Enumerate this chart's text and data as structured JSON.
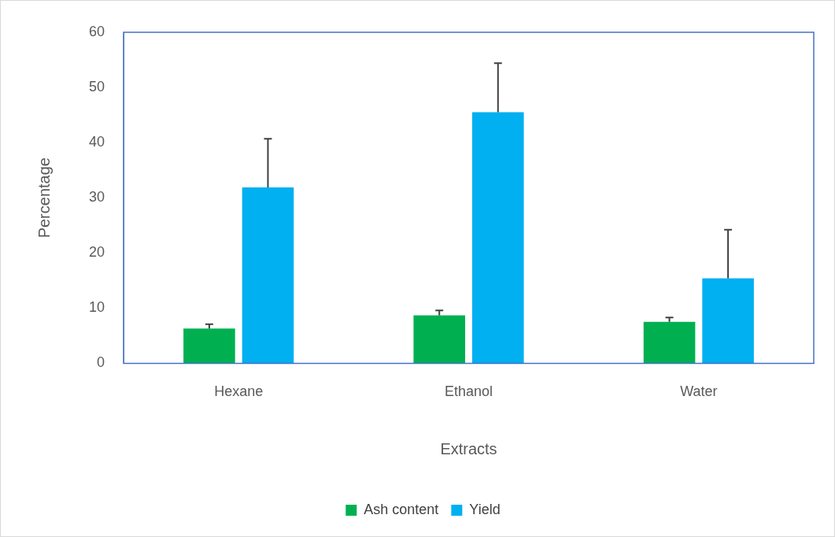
{
  "chart_data": {
    "type": "bar",
    "xlabel": "Extracts",
    "ylabel": "Percentage",
    "categories": [
      "Hexane",
      "Ethanol",
      "Water"
    ],
    "series": [
      {
        "name": "Ash content",
        "color": "#00b050",
        "values": [
          6.3,
          8.7,
          7.5
        ],
        "errors": [
          [
            6.3,
            7.1
          ],
          [
            8.7,
            9.6
          ],
          [
            7.5,
            8.3
          ]
        ]
      },
      {
        "name": "Yield",
        "color": "#00b0f0",
        "values": [
          31.9,
          45.5,
          15.4
        ],
        "errors": [
          [
            31.9,
            40.7
          ],
          [
            45.5,
            54.4
          ],
          [
            15.4,
            24.2
          ]
        ]
      }
    ],
    "ylim": [
      0,
      60
    ],
    "yticks": [
      0,
      10,
      20,
      30,
      40,
      50,
      60
    ],
    "grid": false,
    "legend": "bottom"
  }
}
